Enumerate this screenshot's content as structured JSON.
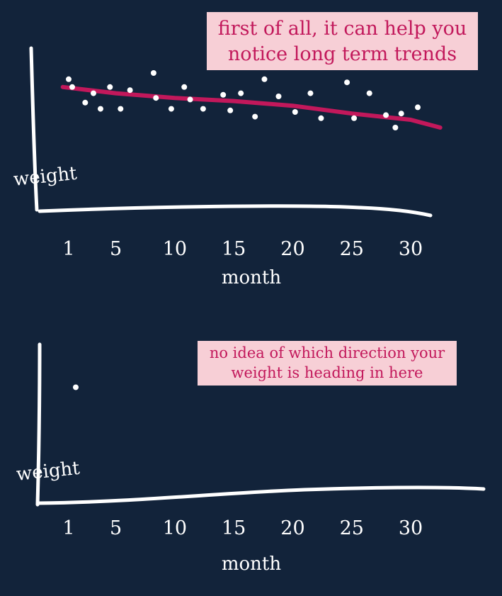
{
  "colors": {
    "background": "#12233a",
    "trend": "#c2185b",
    "note_bg": "#f7cfd6",
    "note_text": "#c2185b",
    "axis": "#ffffff",
    "points": "#ffffff"
  },
  "chart_data": [
    {
      "type": "scatter",
      "note": [
        "first of all, it can help you",
        "notice long term trends"
      ],
      "xlabel": "month",
      "ylabel": "weight",
      "x_ticks": [
        "1",
        "5",
        "10",
        "15",
        "20",
        "25",
        "30"
      ],
      "xlim": [
        1,
        33
      ],
      "ylim": [
        0,
        10
      ],
      "series": [
        {
          "points": [
            {
              "x": 1,
              "y": 8.1
            },
            {
              "x": 1.3,
              "y": 7.6
            },
            {
              "x": 2.4,
              "y": 6.6
            },
            {
              "x": 3.1,
              "y": 7.2
            },
            {
              "x": 3.7,
              "y": 6.2
            },
            {
              "x": 4.5,
              "y": 7.6
            },
            {
              "x": 5.4,
              "y": 6.2
            },
            {
              "x": 6.2,
              "y": 7.4
            },
            {
              "x": 8.2,
              "y": 8.5
            },
            {
              "x": 8.4,
              "y": 6.9
            },
            {
              "x": 9.7,
              "y": 6.2
            },
            {
              "x": 10.8,
              "y": 7.6
            },
            {
              "x": 11.3,
              "y": 6.8
            },
            {
              "x": 12.4,
              "y": 6.2
            },
            {
              "x": 14.1,
              "y": 7.1
            },
            {
              "x": 14.7,
              "y": 6.1
            },
            {
              "x": 15.6,
              "y": 7.2
            },
            {
              "x": 16.8,
              "y": 5.7
            },
            {
              "x": 17.6,
              "y": 8.1
            },
            {
              "x": 18.8,
              "y": 7.0
            },
            {
              "x": 20.2,
              "y": 6.0
            },
            {
              "x": 21.5,
              "y": 7.2
            },
            {
              "x": 22.4,
              "y": 5.6
            },
            {
              "x": 24.6,
              "y": 7.9
            },
            {
              "x": 25.2,
              "y": 5.6
            },
            {
              "x": 26.5,
              "y": 7.2
            },
            {
              "x": 27.9,
              "y": 5.8
            },
            {
              "x": 28.7,
              "y": 5.0
            },
            {
              "x": 29.2,
              "y": 5.9
            },
            {
              "x": 30.6,
              "y": 6.3
            }
          ]
        }
      ],
      "trend": [
        {
          "x": 0.5,
          "y": 7.6
        },
        {
          "x": 5,
          "y": 7.2
        },
        {
          "x": 10,
          "y": 6.9
        },
        {
          "x": 15,
          "y": 6.7
        },
        {
          "x": 20,
          "y": 6.4
        },
        {
          "x": 25,
          "y": 5.9
        },
        {
          "x": 30,
          "y": 5.5
        },
        {
          "x": 32.5,
          "y": 5.0
        }
      ]
    },
    {
      "type": "scatter",
      "note": [
        "no idea of which direction your",
        "weight is heading in here"
      ],
      "xlabel": "month",
      "ylabel": "weight",
      "x_ticks": [
        "1",
        "5",
        "10",
        "15",
        "20",
        "25",
        "30"
      ],
      "xlim": [
        1,
        33
      ],
      "ylim": [
        0,
        10
      ],
      "series": [
        {
          "points": [
            {
              "x": 1.6,
              "y": 7.3
            }
          ]
        }
      ]
    }
  ]
}
